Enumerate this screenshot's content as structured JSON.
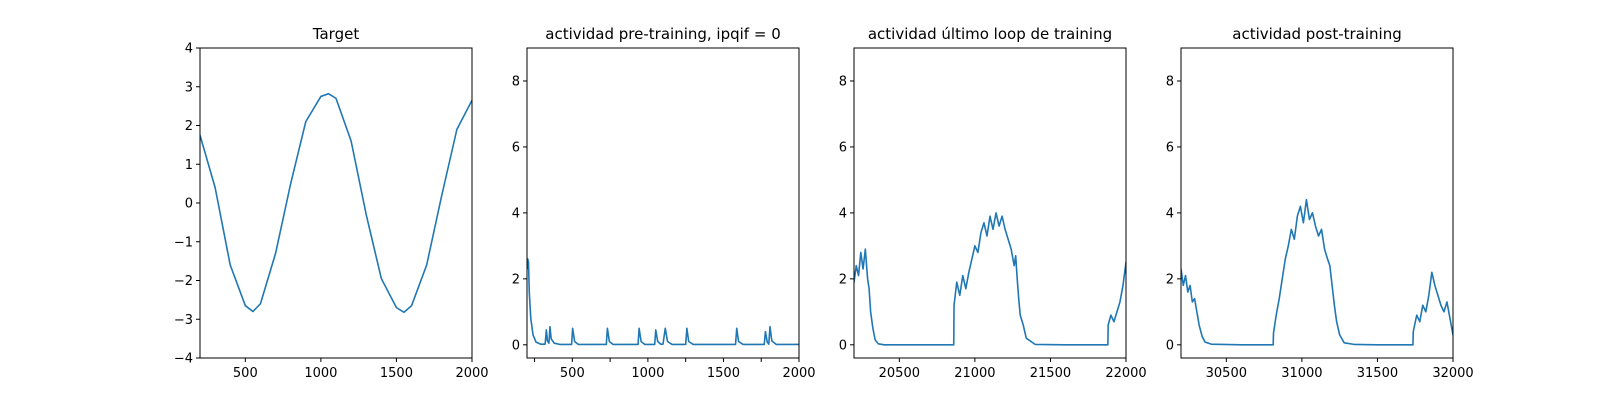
{
  "colors": {
    "series": "#1f77b4"
  },
  "chart_data": [
    {
      "type": "line",
      "title": "Target",
      "xlim": [
        200,
        2000
      ],
      "ylim": [
        -4,
        4
      ],
      "xticks": [
        500,
        1000,
        1500,
        2000
      ],
      "yticks": [
        -4,
        -3,
        -2,
        -1,
        0,
        1,
        2,
        3,
        4
      ],
      "series": [
        {
          "x": [
            200,
            300,
            400,
            500,
            550,
            600,
            700,
            800,
            900,
            1000,
            1050,
            1100,
            1200,
            1300,
            1400,
            1500,
            1550,
            1600,
            1700,
            1800,
            1900,
            2000
          ],
          "y": [
            1.75,
            0.4,
            -1.6,
            -2.65,
            -2.8,
            -2.6,
            -1.3,
            0.5,
            2.1,
            2.75,
            2.82,
            2.7,
            1.6,
            -0.3,
            -1.95,
            -2.7,
            -2.82,
            -2.65,
            -1.6,
            0.2,
            1.9,
            2.65
          ]
        }
      ]
    },
    {
      "type": "line",
      "title": "actividad pre-training, ipqif = 0",
      "xlim": [
        200,
        2000
      ],
      "ylim": [
        -0.4,
        9
      ],
      "xticks": [
        250,
        500,
        750,
        1000,
        1250,
        1500,
        1750,
        2000
      ],
      "xtick_labels": [
        "",
        "500",
        "",
        "1000",
        "",
        "1500",
        "",
        "2000"
      ],
      "yticks": [
        0,
        2,
        4,
        6,
        8
      ],
      "series": [
        {
          "x": [
            200,
            205,
            210,
            215,
            225,
            240,
            260,
            290,
            320,
            328,
            335,
            345,
            352,
            360,
            380,
            420,
            495,
            502,
            515,
            540,
            725,
            732,
            745,
            770,
            935,
            942,
            955,
            980,
            1045,
            1052,
            1065,
            1085,
            1100,
            1115,
            1130,
            1160,
            1250,
            1258,
            1270,
            1300,
            1580,
            1588,
            1600,
            1630,
            1770,
            1778,
            1790,
            1800,
            1808,
            1820,
            1850,
            2000
          ],
          "y": [
            2.3,
            2.6,
            2.5,
            1.6,
            0.8,
            0.3,
            0.08,
            0.02,
            0.02,
            0.45,
            0.12,
            0.05,
            0.55,
            0.18,
            0.05,
            0.01,
            0.01,
            0.5,
            0.1,
            0.01,
            0.01,
            0.5,
            0.1,
            0.01,
            0.01,
            0.5,
            0.1,
            0.01,
            0.01,
            0.45,
            0.1,
            0.02,
            0.02,
            0.5,
            0.1,
            0.01,
            0.01,
            0.5,
            0.1,
            0.01,
            0.01,
            0.5,
            0.1,
            0.01,
            0.01,
            0.4,
            0.08,
            0.02,
            0.55,
            0.12,
            0.01,
            0.01
          ]
        }
      ]
    },
    {
      "type": "line",
      "title": "actividad último loop de training",
      "xlim": [
        20200,
        22000
      ],
      "ylim": [
        -0.4,
        9
      ],
      "xticks": [
        20500,
        21000,
        21500,
        22000
      ],
      "yticks": [
        0,
        2,
        4,
        6,
        8
      ],
      "series": [
        {
          "x": [
            20200,
            20215,
            20230,
            20245,
            20260,
            20275,
            20290,
            20300,
            20310,
            20325,
            20340,
            20360,
            20400,
            20600,
            20860,
            20862,
            20880,
            20900,
            20920,
            20940,
            20960,
            20980,
            21000,
            21020,
            21040,
            21060,
            21080,
            21100,
            21120,
            21140,
            21160,
            21180,
            21200,
            21220,
            21240,
            21260,
            21270,
            21280,
            21290,
            21300,
            21320,
            21340,
            21400,
            21600,
            21880,
            21882,
            21900,
            21920,
            21940,
            21960,
            21980,
            22000
          ],
          "y": [
            1.9,
            2.4,
            2.1,
            2.8,
            2.3,
            2.9,
            2.0,
            1.7,
            1.0,
            0.5,
            0.15,
            0.03,
            0.0,
            0.0,
            0.0,
            1.2,
            1.9,
            1.5,
            2.1,
            1.7,
            2.2,
            2.6,
            3.0,
            2.8,
            3.4,
            3.7,
            3.3,
            3.9,
            3.5,
            4.0,
            3.6,
            3.9,
            3.5,
            3.2,
            2.9,
            2.4,
            2.7,
            2.0,
            1.4,
            0.9,
            0.6,
            0.2,
            0.01,
            0.0,
            0.0,
            0.6,
            0.9,
            0.7,
            1.0,
            1.3,
            1.8,
            2.5
          ]
        }
      ]
    },
    {
      "type": "line",
      "title": "actividad post-training",
      "xlim": [
        30200,
        32000
      ],
      "ylim": [
        -0.4,
        9
      ],
      "xticks": [
        30500,
        31000,
        31500,
        32000
      ],
      "yticks": [
        0,
        2,
        4,
        6,
        8
      ],
      "series": [
        {
          "x": [
            30200,
            30215,
            30230,
            30245,
            30260,
            30275,
            30290,
            30305,
            30320,
            30340,
            30360,
            30400,
            30600,
            30810,
            30812,
            30830,
            30850,
            30870,
            30890,
            30910,
            30930,
            30950,
            30970,
            30990,
            31010,
            31030,
            31050,
            31070,
            31090,
            31110,
            31130,
            31150,
            31170,
            31185,
            31200,
            31215,
            31230,
            31250,
            31280,
            31350,
            31500,
            31735,
            31737,
            31760,
            31780,
            31800,
            31820,
            31840,
            31860,
            31880,
            31900,
            31920,
            31940,
            31960,
            31980,
            32000
          ],
          "y": [
            2.3,
            1.8,
            2.1,
            1.6,
            1.8,
            1.3,
            1.4,
            1.0,
            0.6,
            0.25,
            0.08,
            0.02,
            0.0,
            0.0,
            0.35,
            0.9,
            1.4,
            2.0,
            2.6,
            3.0,
            3.5,
            3.2,
            3.9,
            4.2,
            3.7,
            4.4,
            3.8,
            4.0,
            3.6,
            3.3,
            3.5,
            2.9,
            2.6,
            2.4,
            1.8,
            1.2,
            0.7,
            0.3,
            0.06,
            0.01,
            0.0,
            0.0,
            0.4,
            0.9,
            0.7,
            1.2,
            1.0,
            1.5,
            2.2,
            1.8,
            1.5,
            1.2,
            1.0,
            1.3,
            0.8,
            0.3
          ]
        }
      ]
    }
  ]
}
